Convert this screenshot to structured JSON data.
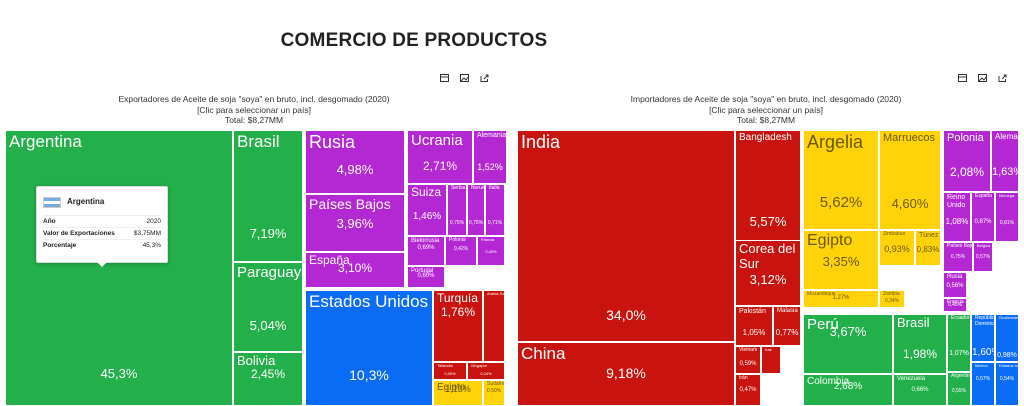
{
  "page": {
    "title": "COMERCIO DE PRODUCTOS"
  },
  "colors": {
    "green": "#23b04a",
    "purple": "#b428d4",
    "blue": "#0a6cf5",
    "red": "#c9130e",
    "yellow": "#ffd20a"
  },
  "toolbar_icons": [
    "table-icon",
    "image-icon",
    "share-icon"
  ],
  "exporters": {
    "title": "Exportadores de Aceite de soja \"soya\" en bruto, incl. desgomado (2020)",
    "subtitle": "[Clic para seleccionar un país]",
    "total": "Total: $8,27MM",
    "tooltip": {
      "country": "Argentina",
      "rows": [
        {
          "label": "Año",
          "value": "2020"
        },
        {
          "label": "Valor de Exportaciones",
          "value": "$3,75MM"
        },
        {
          "label": "Porcentaje",
          "value": "45,3%"
        }
      ]
    },
    "tiles": [
      {
        "name": "Argentina",
        "value": "45,3%",
        "color": "green"
      },
      {
        "name": "Brasil",
        "value": "7,19%",
        "color": "green"
      },
      {
        "name": "Paraguay",
        "value": "5,04%",
        "color": "green"
      },
      {
        "name": "Bolivia",
        "value": "2,45%",
        "color": "green"
      },
      {
        "name": "Rusia",
        "value": "4,98%",
        "color": "purple"
      },
      {
        "name": "Países Bajos",
        "value": "3,96%",
        "color": "purple"
      },
      {
        "name": "España",
        "value": "3,10%",
        "color": "purple"
      },
      {
        "name": "Ucrania",
        "value": "2,71%",
        "color": "purple"
      },
      {
        "name": "Alemania",
        "value": "1,52%",
        "color": "purple"
      },
      {
        "name": "Suiza",
        "value": "1,46%",
        "color": "purple"
      },
      {
        "name": "Serbia",
        "value": "0,75%",
        "color": "purple"
      },
      {
        "name": "Noruega",
        "value": "0,75%",
        "color": "purple"
      },
      {
        "name": "Italia",
        "value": "0,71%",
        "color": "purple"
      },
      {
        "name": "Bielorrusia",
        "value": "0,69%",
        "color": "purple"
      },
      {
        "name": "Polonia",
        "value": "0,42%",
        "color": "purple"
      },
      {
        "name": "Francia",
        "value": "0,45%",
        "color": "purple"
      },
      {
        "name": "Portugal",
        "value": "0,60%",
        "color": "purple"
      },
      {
        "name": "Estados Unidos",
        "value": "10,3%",
        "color": "blue"
      },
      {
        "name": "Turquía",
        "value": "1,76%",
        "color": "red"
      },
      {
        "name": "Arabia Saudita",
        "value": "",
        "color": "red"
      },
      {
        "name": "Tailandia",
        "value": "0,30%",
        "color": "red"
      },
      {
        "name": "Singapur",
        "value": "0,24%",
        "color": "red"
      },
      {
        "name": "Egipto",
        "value": "1,13%",
        "color": "yellow"
      },
      {
        "name": "Sudáfrica",
        "value": "0,50%",
        "color": "yellow"
      }
    ]
  },
  "importers": {
    "title": "Importadores de Aceite de soja \"soya\" en bruto, incl. desgomado (2020)",
    "subtitle": "[Clic para seleccionar un país]",
    "total": "Total: $8,27MM",
    "tiles": [
      {
        "name": "India",
        "value": "34,0%",
        "color": "red"
      },
      {
        "name": "China",
        "value": "9,18%",
        "color": "red"
      },
      {
        "name": "Bangladesh",
        "value": "5,57%",
        "color": "red"
      },
      {
        "name": "Corea del Sur",
        "value": "3,12%",
        "color": "red"
      },
      {
        "name": "Pakistán",
        "value": "1,05%",
        "color": "red"
      },
      {
        "name": "Malasia",
        "value": "0,77%",
        "color": "red"
      },
      {
        "name": "Vietnam",
        "value": "0,59%",
        "color": "red"
      },
      {
        "name": "Irak",
        "value": "",
        "color": "red"
      },
      {
        "name": "Irán",
        "value": "0,47%",
        "color": "red"
      },
      {
        "name": "Argelia",
        "value": "5,62%",
        "color": "yellow"
      },
      {
        "name": "Marruecos",
        "value": "4,60%",
        "color": "yellow"
      },
      {
        "name": "Egipto",
        "value": "3,35%",
        "color": "yellow"
      },
      {
        "name": "Zimbabue",
        "value": "0,93%",
        "color": "yellow"
      },
      {
        "name": "Túnez",
        "value": "0,83%",
        "color": "yellow"
      },
      {
        "name": "Mozambique",
        "value": "1,27%",
        "color": "yellow"
      },
      {
        "name": "Zambia",
        "value": "0,34%",
        "color": "yellow"
      },
      {
        "name": "Polonia",
        "value": "2,08%",
        "color": "purple"
      },
      {
        "name": "Alemania",
        "value": "1,63%",
        "color": "purple"
      },
      {
        "name": "Reino Unido",
        "value": "1,08%",
        "color": "purple"
      },
      {
        "name": "España",
        "value": "0,87%",
        "color": "purple"
      },
      {
        "name": "Noruega",
        "value": "0,81%",
        "color": "purple"
      },
      {
        "name": "Países Bajos",
        "value": "0,75%",
        "color": "purple"
      },
      {
        "name": "Bélgica",
        "value": "0,57%",
        "color": "purple"
      },
      {
        "name": "Rusia",
        "value": "0,56%",
        "color": "purple"
      },
      {
        "name": "Francia",
        "value": "0,45%",
        "color": "purple"
      },
      {
        "name": "Perú",
        "value": "3,67%",
        "color": "green"
      },
      {
        "name": "Colombia",
        "value": "2,68%",
        "color": "green"
      },
      {
        "name": "Brasil",
        "value": "1,98%",
        "color": "green"
      },
      {
        "name": "Ecuador",
        "value": "1,07%",
        "color": "green"
      },
      {
        "name": "Venezuela",
        "value": "0,66%",
        "color": "green"
      },
      {
        "name": "Argentina",
        "value": "0,55%",
        "color": "green"
      },
      {
        "name": "República Dominicana",
        "value": "1,60%",
        "color": "blue"
      },
      {
        "name": "Guatemala",
        "value": "0,98%",
        "color": "blue"
      },
      {
        "name": "México",
        "value": "0,57%",
        "color": "blue"
      },
      {
        "name": "Estados Unidos",
        "value": "0,54%",
        "color": "blue"
      }
    ]
  }
}
